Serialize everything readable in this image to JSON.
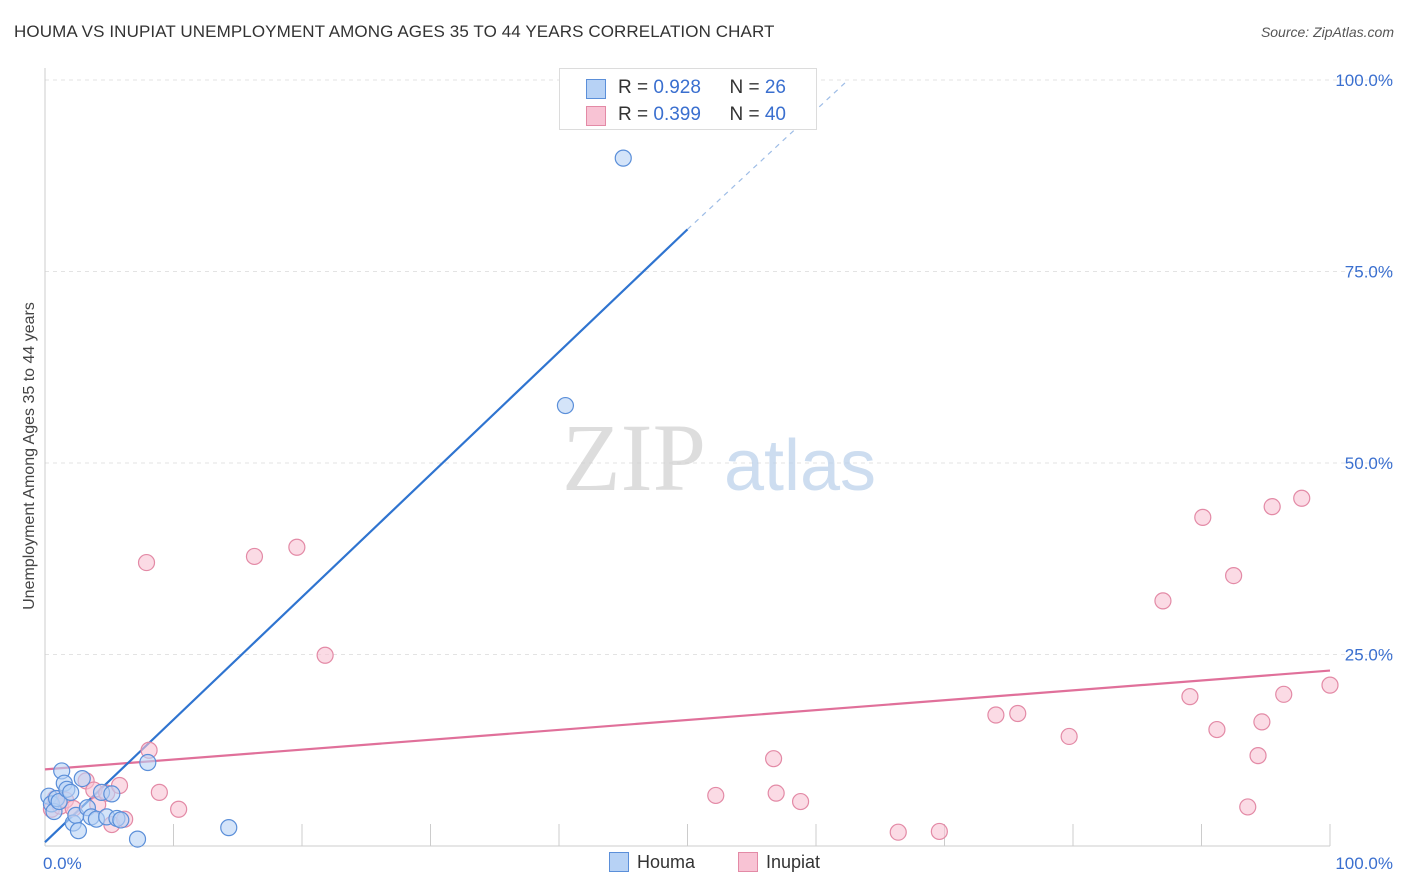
{
  "title": "HOUMA VS INUPIAT UNEMPLOYMENT AMONG AGES 35 TO 44 YEARS CORRELATION CHART",
  "source": "Source: ZipAtlas.com",
  "watermark": {
    "zip": "ZIP",
    "atlas": "atlas"
  },
  "legend": {
    "houma": {
      "r_label": "R = ",
      "r_value": "0.928",
      "n_label": "N = ",
      "n_value": "26"
    },
    "inupiat": {
      "r_label": "R = ",
      "r_value": "0.399",
      "n_label": "N = ",
      "n_value": "40"
    }
  },
  "colors": {
    "houma_fill": "#b7d2f5",
    "houma_stroke": "#5b8fd9",
    "houma_line": "#2f74d0",
    "inupiat_fill": "#f8c3d4",
    "inupiat_stroke": "#e38aa6",
    "inupiat_line": "#e0709a",
    "tick_text": "#3a6fcf",
    "grid": "#e3e3e3"
  },
  "chart_data": {
    "type": "scatter",
    "title": "HOUMA VS INUPIAT UNEMPLOYMENT AMONG AGES 35 TO 44 YEARS CORRELATION CHART",
    "xlabel": "",
    "ylabel": "Unemployment Among Ages 35 to 44 years",
    "xlim": [
      0,
      100
    ],
    "ylim": [
      0,
      100
    ],
    "x_tick_labels": [
      "0.0%",
      "100.0%"
    ],
    "y_tick_labels": [
      "100.0%",
      "75.0%",
      "50.0%",
      "25.0%"
    ],
    "y_tick_values": [
      100,
      75,
      50,
      25
    ],
    "grid": true,
    "legend_position": "top-center",
    "series": [
      {
        "name": "Houma",
        "r": 0.928,
        "n": 26,
        "trend": {
          "x0": 0,
          "y0": 0.5,
          "x1": 50,
          "y1": 80.5,
          "dash_to_x": 62.5,
          "dash_to_y": 100
        },
        "points": [
          {
            "x": 0.3,
            "y": 6.5
          },
          {
            "x": 0.5,
            "y": 5.5
          },
          {
            "x": 0.7,
            "y": 4.5
          },
          {
            "x": 0.9,
            "y": 6.2
          },
          {
            "x": 1.1,
            "y": 5.8
          },
          {
            "x": 1.3,
            "y": 9.8
          },
          {
            "x": 1.5,
            "y": 8.2
          },
          {
            "x": 1.7,
            "y": 7.4
          },
          {
            "x": 2.0,
            "y": 7.0
          },
          {
            "x": 2.2,
            "y": 3.0
          },
          {
            "x": 2.4,
            "y": 4.0
          },
          {
            "x": 2.6,
            "y": 2.0
          },
          {
            "x": 2.9,
            "y": 8.8
          },
          {
            "x": 3.3,
            "y": 5.0
          },
          {
            "x": 3.6,
            "y": 3.8
          },
          {
            "x": 4.0,
            "y": 3.5
          },
          {
            "x": 4.4,
            "y": 7.0
          },
          {
            "x": 4.8,
            "y": 3.8
          },
          {
            "x": 5.2,
            "y": 6.8
          },
          {
            "x": 5.6,
            "y": 3.6
          },
          {
            "x": 5.9,
            "y": 3.4
          },
          {
            "x": 7.2,
            "y": 0.9
          },
          {
            "x": 8.0,
            "y": 10.9
          },
          {
            "x": 14.3,
            "y": 2.4
          },
          {
            "x": 40.5,
            "y": 57.5
          },
          {
            "x": 45.0,
            "y": 89.8
          }
        ]
      },
      {
        "name": "Inupiat",
        "r": 0.399,
        "n": 40,
        "trend": {
          "x0": 0,
          "y0": 10.0,
          "x1": 100,
          "y1": 22.9
        },
        "points": [
          {
            "x": 0.5,
            "y": 4.8
          },
          {
            "x": 0.8,
            "y": 6.2
          },
          {
            "x": 1.2,
            "y": 5.2
          },
          {
            "x": 1.6,
            "y": 6.0
          },
          {
            "x": 2.2,
            "y": 4.9
          },
          {
            "x": 3.2,
            "y": 8.5
          },
          {
            "x": 3.8,
            "y": 7.3
          },
          {
            "x": 4.1,
            "y": 5.4
          },
          {
            "x": 4.8,
            "y": 6.9
          },
          {
            "x": 5.2,
            "y": 2.8
          },
          {
            "x": 5.8,
            "y": 7.9
          },
          {
            "x": 6.2,
            "y": 3.5
          },
          {
            "x": 7.9,
            "y": 37.0
          },
          {
            "x": 8.1,
            "y": 12.5
          },
          {
            "x": 8.9,
            "y": 7.0
          },
          {
            "x": 10.4,
            "y": 4.8
          },
          {
            "x": 16.3,
            "y": 37.8
          },
          {
            "x": 19.6,
            "y": 39.0
          },
          {
            "x": 21.8,
            "y": 24.9
          },
          {
            "x": 52.2,
            "y": 6.6
          },
          {
            "x": 56.7,
            "y": 11.4
          },
          {
            "x": 56.9,
            "y": 6.9
          },
          {
            "x": 58.8,
            "y": 5.8
          },
          {
            "x": 66.4,
            "y": 1.8
          },
          {
            "x": 69.6,
            "y": 1.9
          },
          {
            "x": 74.0,
            "y": 17.1
          },
          {
            "x": 75.7,
            "y": 17.3
          },
          {
            "x": 79.7,
            "y": 14.3
          },
          {
            "x": 87.0,
            "y": 32.0
          },
          {
            "x": 89.1,
            "y": 19.5
          },
          {
            "x": 90.1,
            "y": 42.9
          },
          {
            "x": 91.2,
            "y": 15.2
          },
          {
            "x": 92.5,
            "y": 35.3
          },
          {
            "x": 93.6,
            "y": 5.1
          },
          {
            "x": 94.4,
            "y": 11.8
          },
          {
            "x": 94.7,
            "y": 16.2
          },
          {
            "x": 95.5,
            "y": 44.3
          },
          {
            "x": 96.4,
            "y": 19.8
          },
          {
            "x": 97.8,
            "y": 45.4
          },
          {
            "x": 100.0,
            "y": 21.0
          }
        ]
      }
    ]
  }
}
